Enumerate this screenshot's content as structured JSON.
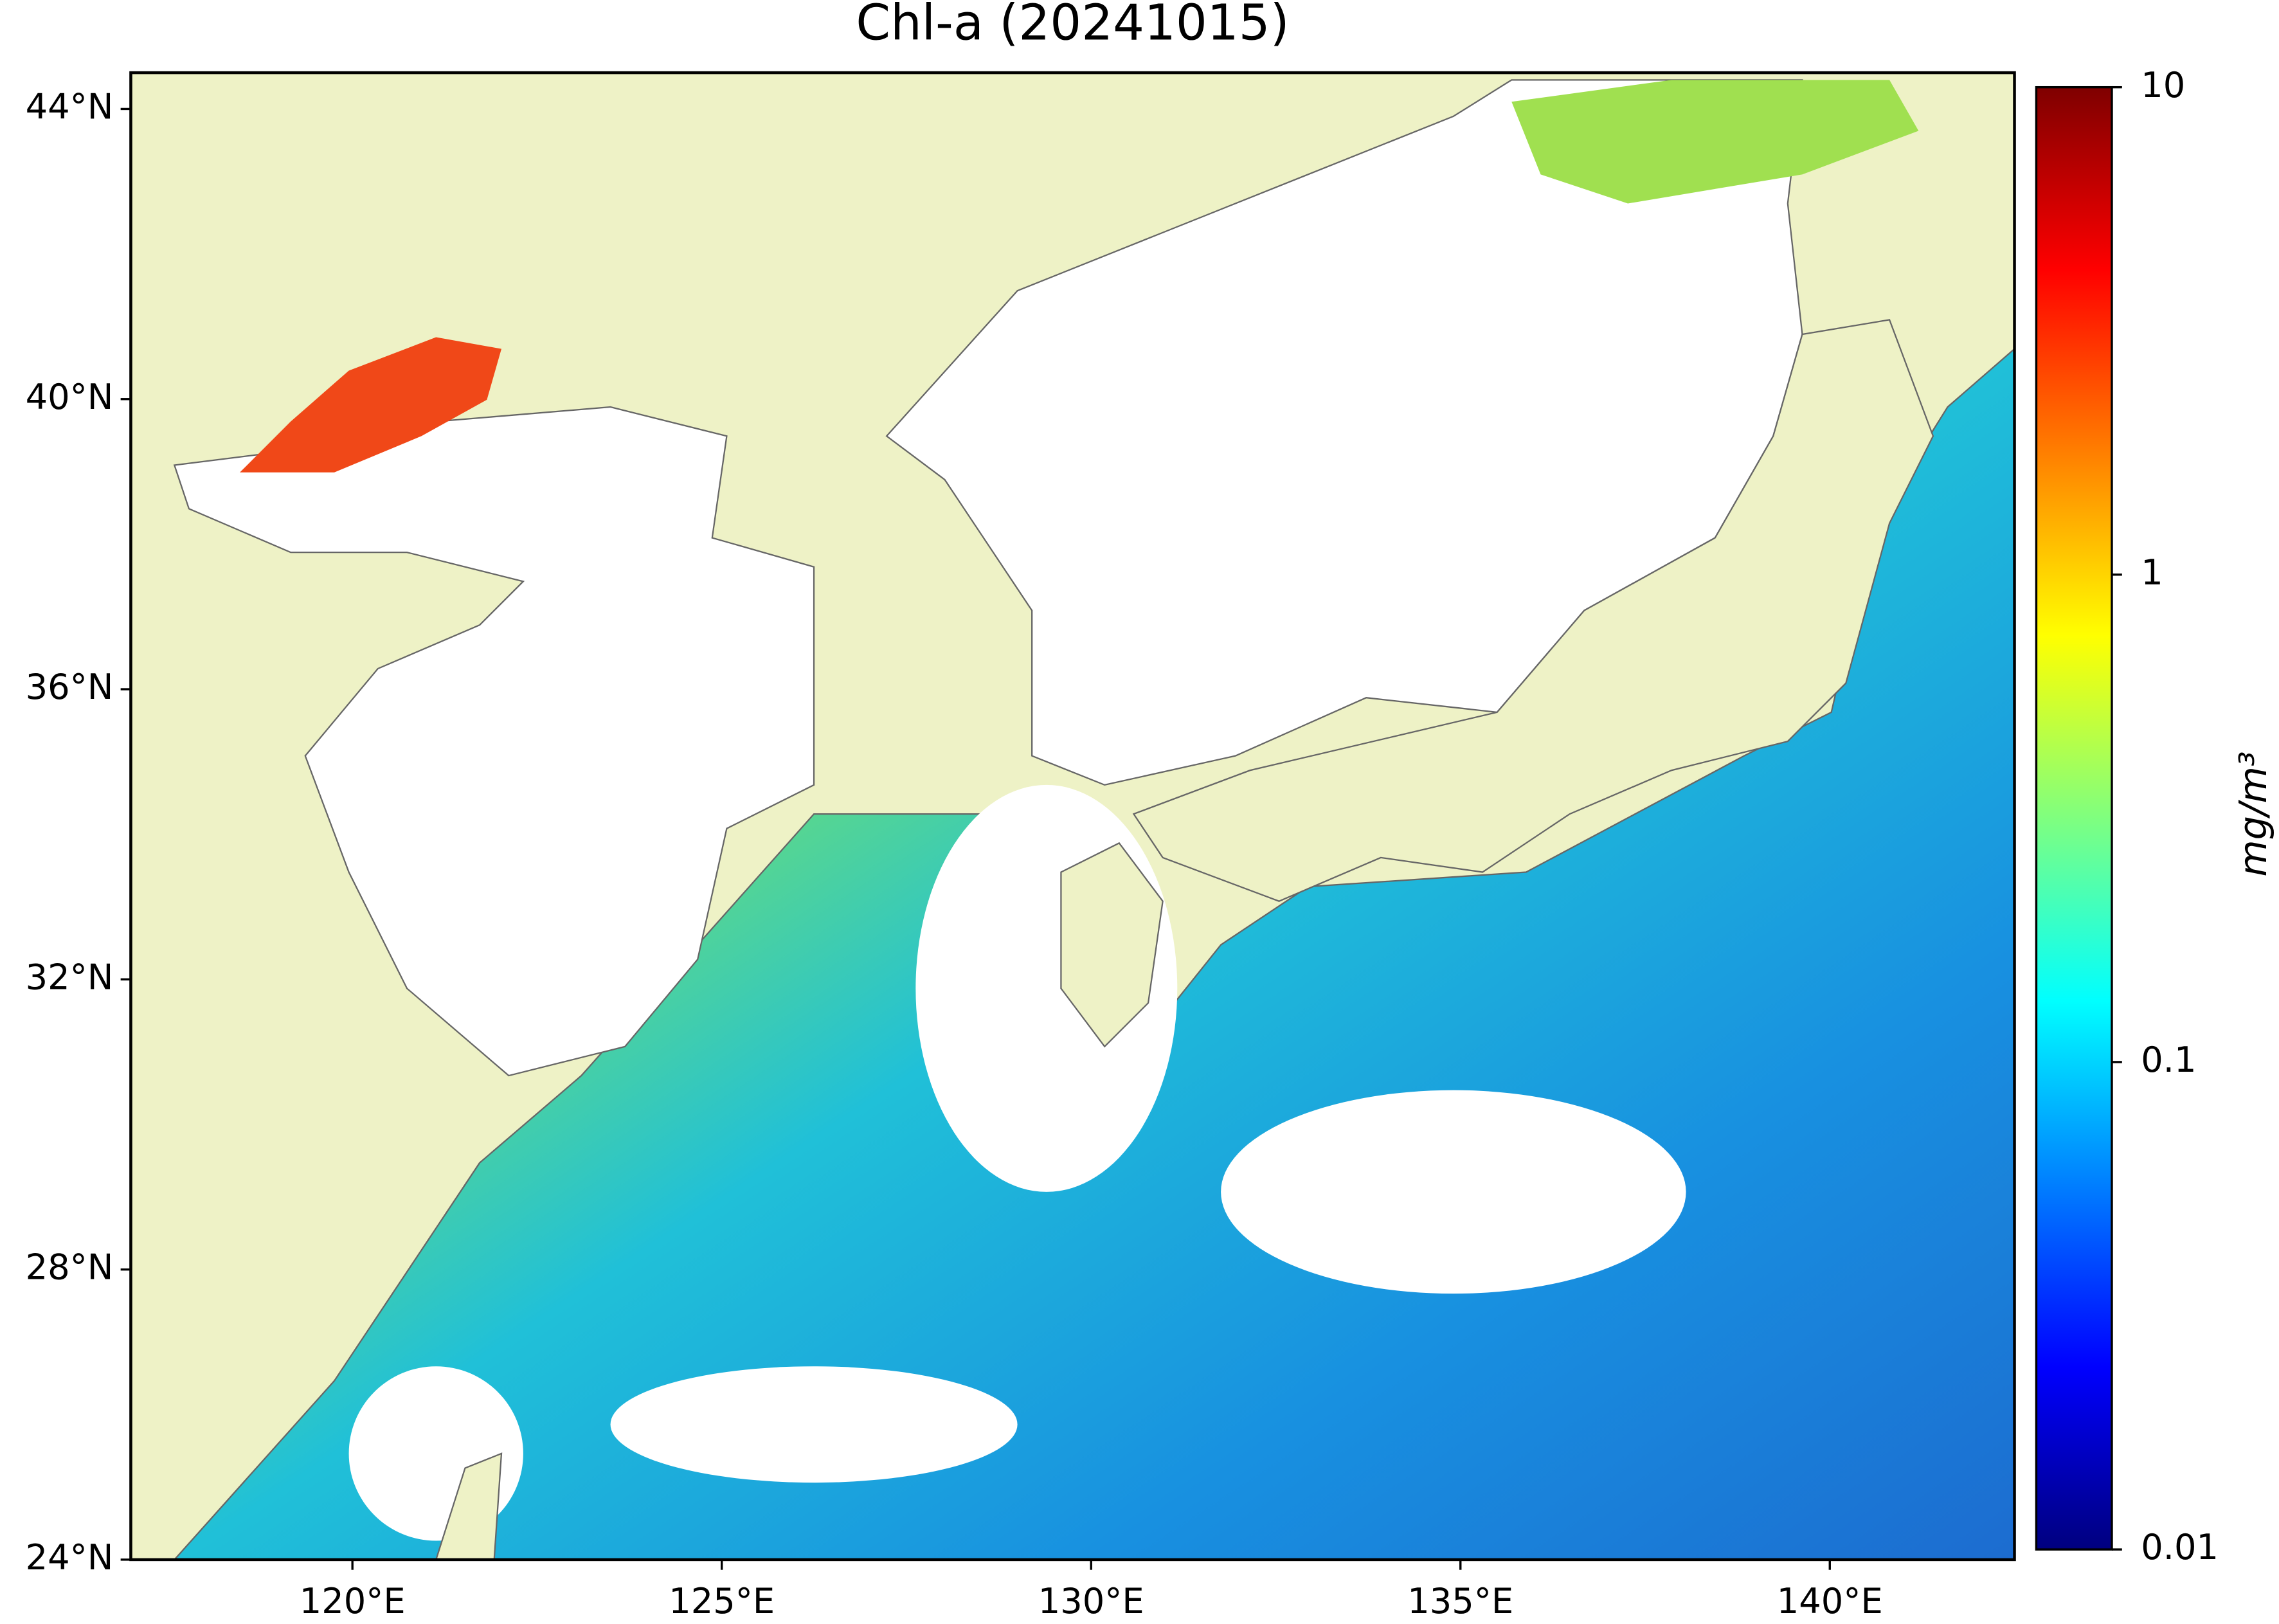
{
  "chart_data": {
    "type": "map",
    "title": "Chl-a (20241015)",
    "xlim": [
      117,
      142.5
    ],
    "ylim": [
      24,
      44.5
    ],
    "xticks": [
      {
        "value": 120,
        "label": "120°E"
      },
      {
        "value": 125,
        "label": "125°E"
      },
      {
        "value": 130,
        "label": "130°E"
      },
      {
        "value": 135,
        "label": "135°E"
      },
      {
        "value": 140,
        "label": "140°E"
      }
    ],
    "yticks": [
      {
        "value": 24,
        "label": "24°N"
      },
      {
        "value": 28,
        "label": "28°N"
      },
      {
        "value": 32,
        "label": "32°N"
      },
      {
        "value": 36,
        "label": "36°N"
      },
      {
        "value": 40,
        "label": "40°N"
      },
      {
        "value": 44,
        "label": "44°N"
      }
    ],
    "colorbar": {
      "label": "mg/m³",
      "lim": [
        0.01,
        10
      ],
      "ticks": [
        0.01,
        0.1,
        1,
        10
      ],
      "log": true,
      "colormap": "jet"
    }
  }
}
